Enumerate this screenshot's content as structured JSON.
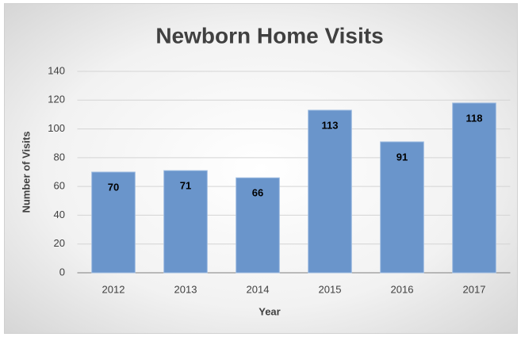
{
  "chart_data": {
    "type": "bar",
    "title": "Newborn Home Visits",
    "x_label": "Year",
    "y_label": "Number of Visits",
    "categories": [
      "2012",
      "2013",
      "2014",
      "2015",
      "2016",
      "2017"
    ],
    "values": [
      70,
      71,
      66,
      113,
      91,
      118
    ],
    "color": "#6a95cb",
    "ylim": [
      0,
      140
    ],
    "yticks": [
      0,
      20,
      40,
      60,
      80,
      100,
      120,
      140
    ],
    "grid": true
  }
}
